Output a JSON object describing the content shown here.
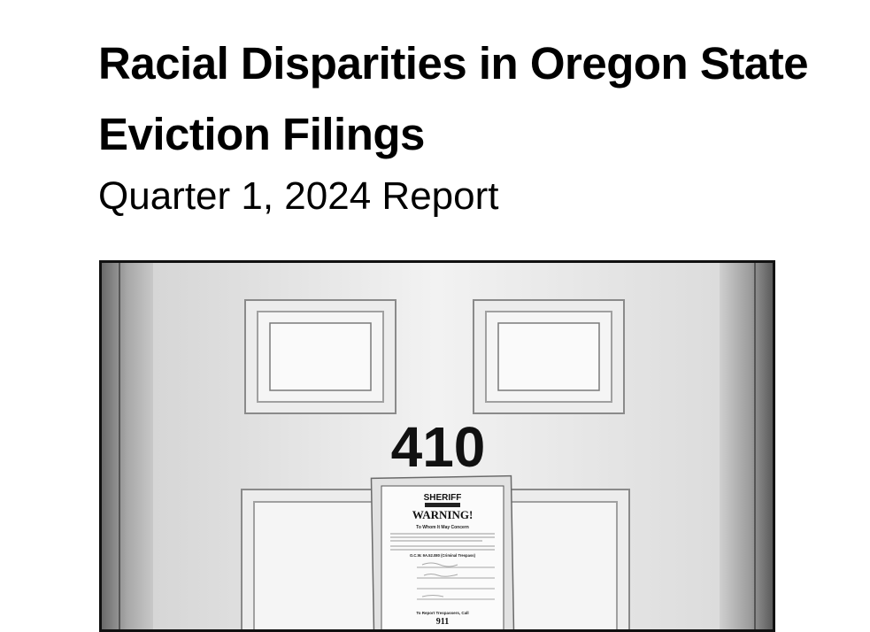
{
  "report": {
    "title": "Racial Disparities in Oregon State Eviction Filings",
    "subtitle": "Quarter 1, 2024 Report"
  },
  "photo": {
    "door_number": "410",
    "notice": {
      "agency": "SHERIFF",
      "heading": "WARNING!",
      "salutation": "To Whom It May Concern",
      "statute": "O.C.W. 9A.52.080 (Criminal Trespass)",
      "report_line": "To Report Trespassers, Call",
      "phone": "911"
    }
  }
}
